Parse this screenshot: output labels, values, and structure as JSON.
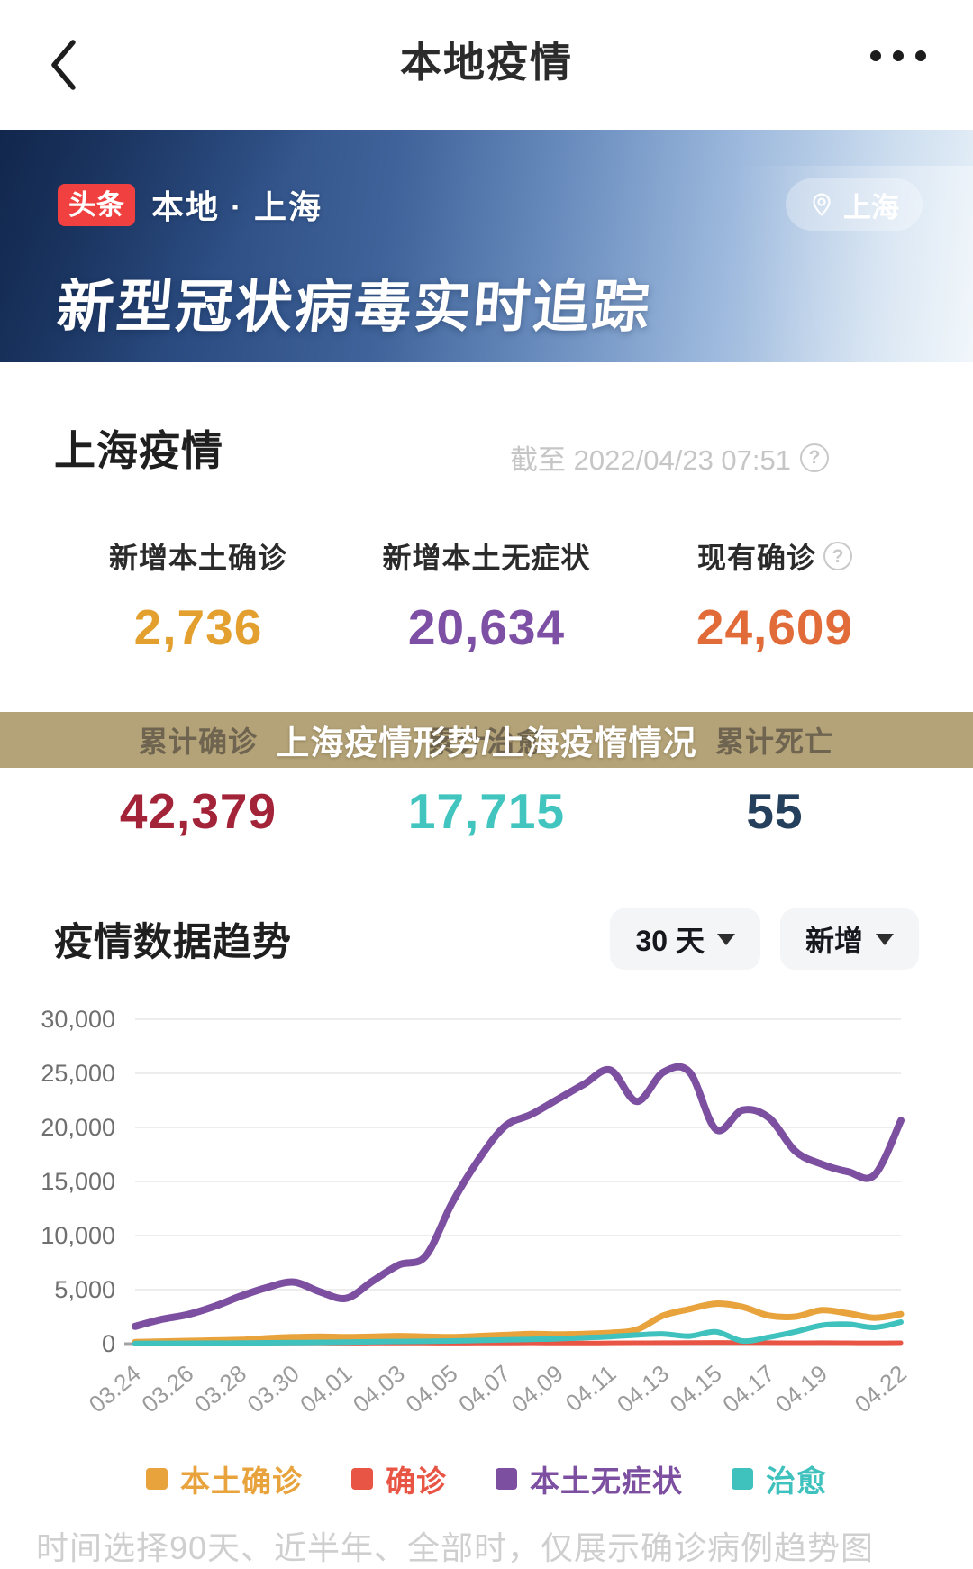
{
  "topbar": {
    "title": "本地疫情"
  },
  "banner": {
    "brand_badge": "头条",
    "subtitle": "本地 · 上海",
    "location_pill": "上海",
    "title": "新型冠状病毒实时追踪"
  },
  "summary": {
    "section_title": "上海疫情",
    "as_of": "截至 2022/04/23 07:51",
    "help_glyph": "?",
    "band_color": "#b4a378",
    "watermark": "上海疫情形势/上海疫惰情况",
    "stats_row1": [
      {
        "label": "新增本土确诊",
        "value": "2,736",
        "color": "#e3a02f"
      },
      {
        "label": "新增本土无症状",
        "value": "20,634",
        "color": "#7d4fa5"
      },
      {
        "label": "现有确诊",
        "value": "24,609",
        "color": "#e16c39"
      }
    ],
    "stats_row2": [
      {
        "label": "累计确诊",
        "value": "42,379",
        "color": "#a32339"
      },
      {
        "label": "累计治愈",
        "value": "17,715",
        "color": "#42c4bf"
      },
      {
        "label": "累计死亡",
        "value": "55",
        "color": "#24405d"
      }
    ]
  },
  "trend": {
    "section_title": "疫情数据趋势",
    "range_select": "30 天",
    "metric_select": "新增"
  },
  "chart_data": {
    "type": "line",
    "title": "疫情数据趋势",
    "grid": true,
    "legend_position": "bottom",
    "ylim": [
      0,
      30000
    ],
    "ytick_values": [
      30000,
      25000,
      20000,
      15000,
      10000,
      5000,
      0
    ],
    "ytick_labels": [
      "30,000",
      "25,000",
      "20,000",
      "15,000",
      "10,000",
      "5,000",
      "0"
    ],
    "categories": [
      "03.24",
      "03.25",
      "03.26",
      "03.27",
      "03.28",
      "03.29",
      "03.30",
      "03.31",
      "04.01",
      "04.02",
      "04.03",
      "04.04",
      "04.05",
      "04.06",
      "04.07",
      "04.08",
      "04.09",
      "04.10",
      "04.11",
      "04.12",
      "04.13",
      "04.14",
      "04.15",
      "04.16",
      "04.17",
      "04.18",
      "04.19",
      "04.20",
      "04.21",
      "04.22"
    ],
    "x_tick_indices": [
      0,
      2,
      4,
      6,
      8,
      10,
      12,
      14,
      16,
      18,
      20,
      22,
      24,
      26,
      29
    ],
    "draw_order": [
      1,
      2,
      0,
      3
    ],
    "series": [
      {
        "name": "本土确诊",
        "color": "#e8a33c",
        "width": 7,
        "values": [
          150,
          200,
          250,
          300,
          350,
          500,
          600,
          650,
          600,
          650,
          700,
          650,
          600,
          700,
          800,
          900,
          850,
          900,
          1000,
          1300,
          2600,
          3200,
          3700,
          3400,
          2600,
          2500,
          3100,
          2800,
          2400,
          2736
        ]
      },
      {
        "name": "确诊",
        "color": "#e85544",
        "width": 5,
        "values": [
          30,
          40,
          40,
          50,
          50,
          60,
          60,
          60,
          50,
          60,
          60,
          60,
          50,
          60,
          60,
          70,
          60,
          60,
          70,
          80,
          90,
          100,
          110,
          100,
          90,
          80,
          90,
          80,
          70,
          80
        ]
      },
      {
        "name": "本土无症状",
        "color": "#7d4fa0",
        "width": 8,
        "values": [
          1600,
          2250,
          2700,
          3450,
          4400,
          5200,
          5700,
          4800,
          4200,
          5800,
          7300,
          8100,
          13000,
          17000,
          20100,
          21200,
          22600,
          24000,
          25300,
          22400,
          25100,
          25100,
          19800,
          21600,
          20900,
          17800,
          16600,
          15900,
          15600,
          20634
        ]
      },
      {
        "name": "治愈",
        "color": "#3fc1bd",
        "width": 6,
        "values": [
          20,
          30,
          40,
          50,
          60,
          80,
          100,
          120,
          150,
          180,
          200,
          220,
          250,
          300,
          350,
          400,
          450,
          550,
          650,
          800,
          900,
          700,
          1100,
          250,
          600,
          1100,
          1700,
          1800,
          1500,
          2000
        ]
      }
    ]
  },
  "footnote": "时间选择90天、近半年、全部时，仅展示确诊病例趋势图"
}
